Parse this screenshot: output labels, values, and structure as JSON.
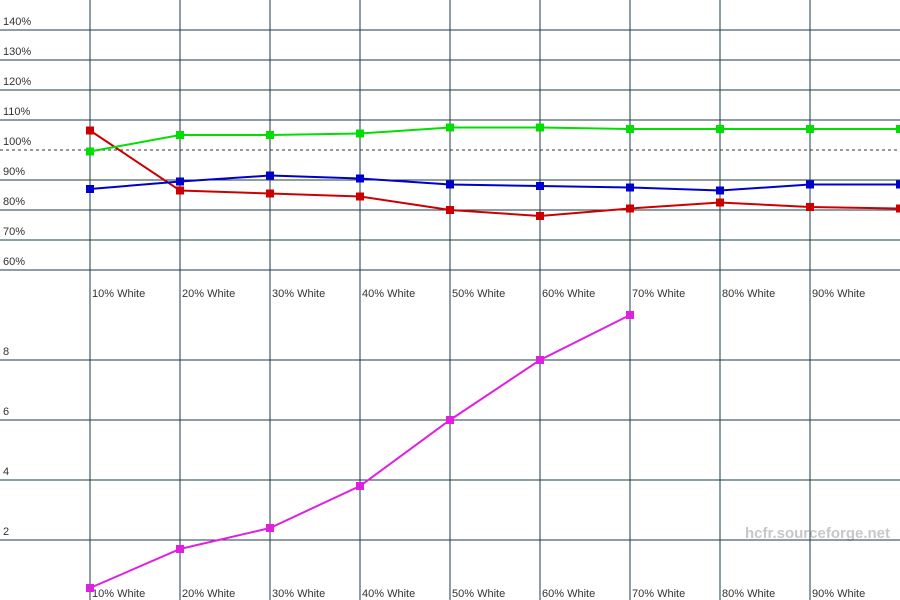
{
  "chart_data": [
    {
      "type": "line",
      "categories": [
        "10% White",
        "20% White",
        "30% White",
        "40% White",
        "50% White",
        "60% White",
        "70% White",
        "80% White",
        "90% White",
        null
      ],
      "series": [
        {
          "color": "#cc0000",
          "values": [
            106.5,
            86.5,
            85.5,
            84.5,
            80,
            78,
            80.5,
            82.5,
            81,
            80.5
          ]
        },
        {
          "color": "#00e000",
          "values": [
            99.5,
            105,
            105,
            105.5,
            107.5,
            107.5,
            107,
            107,
            107,
            107
          ]
        },
        {
          "color": "#0000cc",
          "values": [
            87,
            89.5,
            91.5,
            90.5,
            88.5,
            88,
            87.5,
            86.5,
            88.5,
            88.5
          ]
        }
      ],
      "ylim": [
        60,
        150
      ],
      "yticks": [
        {
          "value": 60,
          "label": "60%"
        },
        {
          "value": 70,
          "label": "70%"
        },
        {
          "value": 80,
          "label": "80%"
        },
        {
          "value": 90,
          "label": "90%"
        },
        {
          "value": 100,
          "label": "100%"
        },
        {
          "value": 110,
          "label": "110%"
        },
        {
          "value": 120,
          "label": "120%"
        },
        {
          "value": 130,
          "label": "130%"
        },
        {
          "value": 140,
          "label": "140%"
        }
      ],
      "reference_line": 100,
      "grid": true
    },
    {
      "type": "line",
      "categories": [
        "10% White",
        "20% White",
        "30% White",
        "40% White",
        "50% White",
        "60% White",
        "70% White",
        "80% White",
        "90% White",
        null
      ],
      "series": [
        {
          "color": "#e020e0",
          "values": [
            0.4,
            1.7,
            2.4,
            3.8,
            6,
            8,
            9.5,
            null,
            null,
            null
          ]
        }
      ],
      "ylim": [
        0,
        10
      ],
      "yticks": [
        2,
        4,
        6,
        8
      ],
      "grid": true
    }
  ],
  "watermark": "hcfr.sourceforge.net"
}
